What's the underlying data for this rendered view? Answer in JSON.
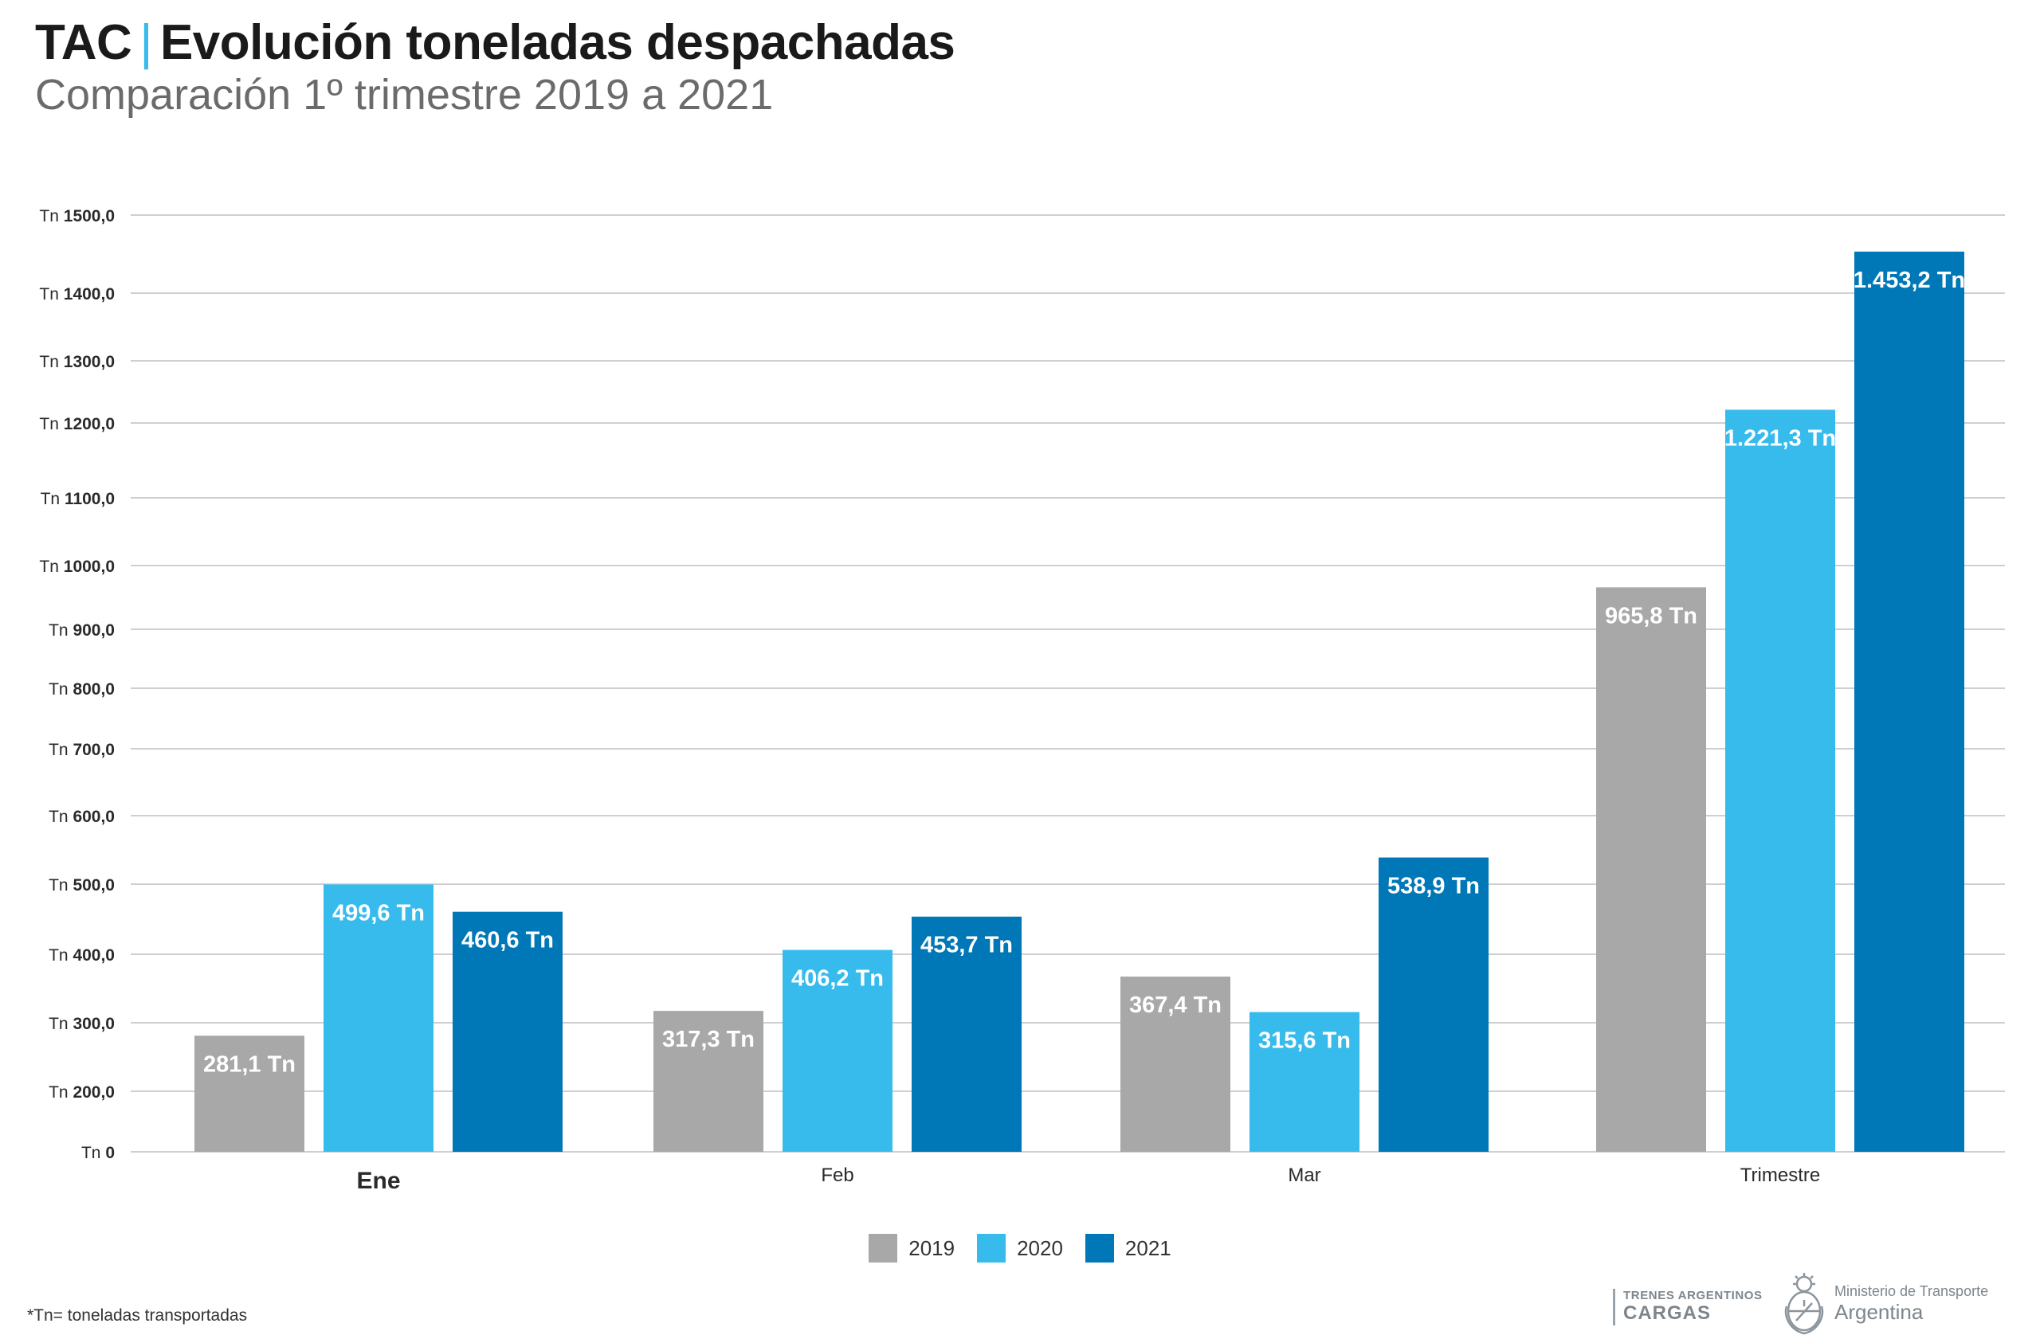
{
  "header": {
    "title_prefix": "TAC",
    "title_separator": "|",
    "title_main": "Evolución toneladas despachadas",
    "subtitle": "Comparación 1º trimestre 2019 a 2021"
  },
  "colors": {
    "series_2019": "#a8a8a8",
    "series_2020": "#37bbed",
    "series_2021": "#0077b6",
    "accent": "#37bbed",
    "gridline": "#cfcfcf"
  },
  "chart_data": {
    "type": "bar",
    "title": "",
    "xlabel": "",
    "ylabel": "",
    "categories": [
      "Ene",
      "Feb",
      "Mar",
      "Trimestre"
    ],
    "series": [
      {
        "name": "2019",
        "values": [
          281.1,
          317.3,
          367.4,
          965.8
        ],
        "labels": [
          "281,1 Tn",
          "317,3 Tn",
          "367,4 Tn",
          "965,8 Tn"
        ]
      },
      {
        "name": "2020",
        "values": [
          499.6,
          406.2,
          315.6,
          1221.3
        ],
        "labels": [
          "499,6 Tn",
          "406,2 Tn",
          "315,6 Tn",
          "1.221,3 Tn"
        ]
      },
      {
        "name": "2021",
        "values": [
          460.6,
          453.7,
          538.9,
          1453.2
        ],
        "labels": [
          "460,6 Tn",
          "453,7 Tn",
          "538,9 Tn",
          "1.453,2 Tn"
        ]
      }
    ],
    "yticks": [
      0,
      200,
      300,
      400,
      500,
      600,
      700,
      800,
      900,
      1000,
      1100,
      1200,
      1300,
      1400,
      1500
    ],
    "ytick_units": [
      "Tn",
      "Tn",
      "Tn",
      "Tn",
      "Tn",
      "Tn",
      "Tn",
      "Tn",
      "Tn",
      "Tn",
      "Tn",
      "Tn",
      "Tn",
      "Tn",
      "Tn"
    ],
    "ytick_values": [
      "0",
      "200,0",
      "300,0",
      "400,0",
      "500,0",
      "600,0",
      "700,0",
      "800,0",
      "900,0",
      "1000,0",
      "1100,0",
      "1200,0",
      "1300,0",
      "1400,0",
      "1500,0"
    ],
    "ylim": [
      0,
      1500
    ],
    "grid": true,
    "legend_position": "bottom-center"
  },
  "legend": {
    "items": [
      {
        "label": "2019",
        "color": "#a8a8a8"
      },
      {
        "label": "2020",
        "color": "#37bbed"
      },
      {
        "label": "2021",
        "color": "#0077b6"
      }
    ]
  },
  "footer": {
    "footnote": "*Tn= toneladas transportadas",
    "brand_line1": "TRENES ARGENTINOS",
    "brand_line2": "CARGAS",
    "ministry_line1": "Ministerio de Transporte",
    "ministry_line2": "Argentina"
  }
}
